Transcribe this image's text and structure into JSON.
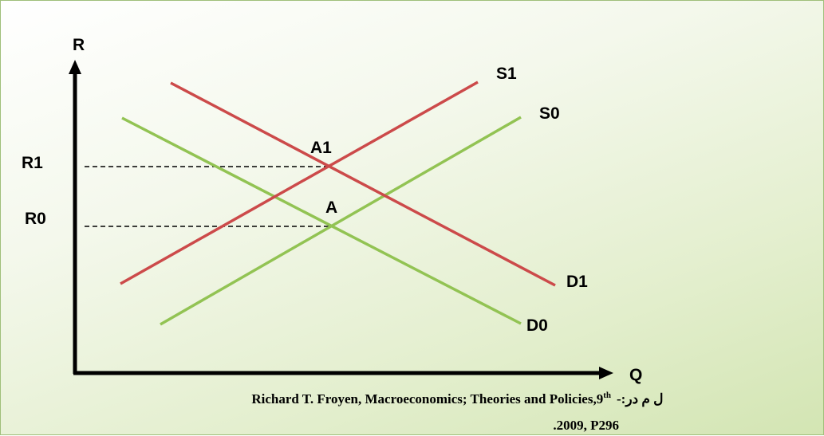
{
  "axes": {
    "y": "R",
    "x": "Q"
  },
  "levels": {
    "r1": "R1",
    "r0": "R0"
  },
  "points": {
    "a1": "A1",
    "a": "A"
  },
  "curves": {
    "s1": "S1",
    "s0": "S0",
    "d1": "D1",
    "d0": "D0"
  },
  "source": {
    "prefix": "ل م در:-",
    "text": "Richard T. Froyen, Macroeconomics; Theories and Policies,9",
    "superscript": "th",
    "line2": ".2009, P296"
  }
}
